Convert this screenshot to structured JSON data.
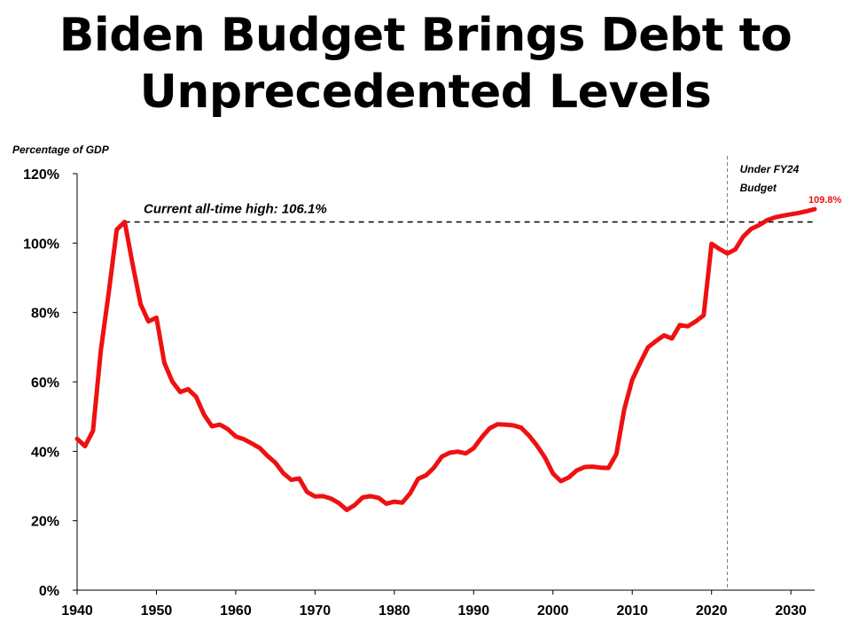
{
  "title_line1": "Biden Budget Brings Debt to",
  "title_line2": "Unprecedented Levels",
  "chart_data": {
    "type": "line",
    "title": "Biden Budget Brings Debt to Unprecedented Levels",
    "ylabel": "Percentage of GDP",
    "xlabel": "",
    "xlim": [
      1940,
      2033
    ],
    "ylim": [
      0,
      120
    ],
    "x_ticks": [
      1940,
      1950,
      1960,
      1970,
      1980,
      1990,
      2000,
      2010,
      2020,
      2030
    ],
    "y_ticks": [
      0,
      20,
      40,
      60,
      80,
      100,
      120
    ],
    "y_tick_labels": [
      "0%",
      "20%",
      "40%",
      "60%",
      "80%",
      "100%",
      "120%"
    ],
    "grid": false,
    "legend": "none",
    "line_color": "#ee1111",
    "series": [
      {
        "x": [
          1940,
          1941,
          1942,
          1943,
          1944,
          1945,
          1946,
          1947,
          1948,
          1949,
          1950,
          1951,
          1952,
          1953,
          1954,
          1955,
          1956,
          1957,
          1958,
          1959,
          1960,
          1961,
          1962,
          1963,
          1964,
          1965,
          1966,
          1967,
          1968,
          1969,
          1970,
          1971,
          1972,
          1973,
          1974,
          1975,
          1976,
          1977,
          1978,
          1979,
          1980,
          1981,
          1982,
          1983,
          1984,
          1985,
          1986,
          1987,
          1988,
          1989,
          1990,
          1991,
          1992,
          1993,
          1994,
          1995,
          1996,
          1997,
          1998,
          1999,
          2000,
          2001,
          2002,
          2003,
          2004,
          2005,
          2006,
          2007,
          2008,
          2009,
          2010,
          2011,
          2012,
          2013,
          2014,
          2015,
          2016,
          2017,
          2018,
          2019,
          2020,
          2021,
          2022,
          2023,
          2024,
          2025,
          2026,
          2027,
          2028,
          2029,
          2030,
          2031,
          2032,
          2033
        ],
        "y": [
          43.6,
          41.5,
          45.9,
          69.2,
          86.0,
          103.9,
          106.1,
          93.9,
          82.4,
          77.4,
          78.5,
          65.5,
          60.1,
          57.1,
          57.9,
          55.7,
          50.6,
          47.2,
          47.7,
          46.4,
          44.3,
          43.5,
          42.3,
          41.0,
          38.7,
          36.7,
          33.7,
          31.8,
          32.2,
          28.3,
          27.0,
          27.1,
          26.4,
          25.1,
          23.1,
          24.5,
          26.7,
          27.1,
          26.6,
          24.9,
          25.5,
          25.2,
          27.9,
          32.1,
          33.1,
          35.3,
          38.5,
          39.6,
          39.9,
          39.4,
          40.9,
          44.0,
          46.6,
          47.8,
          47.7,
          47.5,
          46.8,
          44.5,
          41.6,
          38.2,
          33.6,
          31.4,
          32.5,
          34.5,
          35.5,
          35.6,
          35.3,
          35.2,
          39.2,
          52.2,
          60.6,
          65.5,
          70.0,
          71.8,
          73.4,
          72.5,
          76.4,
          76.0,
          77.4,
          79.2,
          99.8,
          98.3,
          97.0,
          98.2,
          101.9,
          104.1,
          105.2,
          106.6,
          107.4,
          107.9,
          108.3,
          108.7,
          109.2,
          109.8
        ]
      }
    ],
    "reference_line": {
      "y": 106.1,
      "label": "Current all-time high: 106.1%"
    },
    "vertical_marker": {
      "x": 2022,
      "label_line1": "Under FY24",
      "label_line2": "Budget"
    },
    "end_label": "109.8%"
  }
}
